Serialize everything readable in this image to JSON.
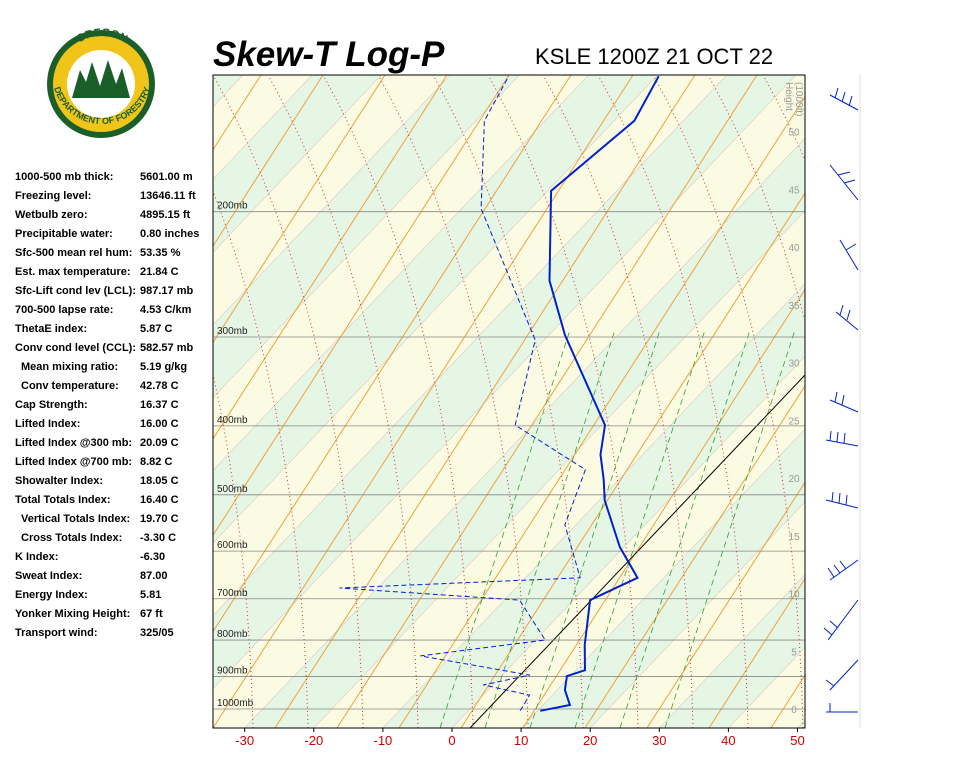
{
  "header": {
    "title": "Skew-T Log-P",
    "station": "KSLE 1200Z 21 OCT 22"
  },
  "logo": {
    "top": "OREGON",
    "bottom": "DEPARTMENT OF FORESTRY"
  },
  "indices": [
    {
      "label": "1000-500 mb thick:",
      "value": "5601.00 m"
    },
    {
      "label": "Freezing level:",
      "value": "13646.11 ft"
    },
    {
      "label": "Wetbulb zero:",
      "value": "4895.15 ft"
    },
    {
      "label": "Precipitable water:",
      "value": "0.80 inches"
    },
    {
      "label": "Sfc-500 mean rel hum:",
      "value": "53.35 %"
    },
    {
      "label": "Est. max temperature:",
      "value": "21.84 C"
    },
    {
      "label": "Sfc-Lift cond lev (LCL):",
      "value": "987.17 mb"
    },
    {
      "label": "700-500 lapse rate:",
      "value": "4.53 C/km"
    },
    {
      "label": "ThetaE index:",
      "value": "5.87 C"
    },
    {
      "label": "Conv cond level (CCL):",
      "value": "582.57 mb"
    },
    {
      "label": "Mean mixing ratio:",
      "value": "5.19 g/kg"
    },
    {
      "label": "Conv temperature:",
      "value": "42.78 C"
    },
    {
      "label": "Cap Strength:",
      "value": "16.37 C"
    },
    {
      "label": "Lifted Index:",
      "value": "16.00 C"
    },
    {
      "label": "Lifted Index @300 mb:",
      "value": "20.09 C"
    },
    {
      "label": "Lifted Index @700 mb:",
      "value": "8.82 C"
    },
    {
      "label": "Showalter Index:",
      "value": "18.05 C"
    },
    {
      "label": "Total Totals Index:",
      "value": "16.40 C"
    },
    {
      "label": "Vertical Totals Index:",
      "value": "19.70 C"
    },
    {
      "label": "Cross Totals Index:",
      "value": "-3.30 C"
    },
    {
      "label": "K Index:",
      "value": "-6.30"
    },
    {
      "label": "Sweat Index:",
      "value": "87.00"
    },
    {
      "label": "Energy Index:",
      "value": "5.81"
    },
    {
      "label": "Yonker Mixing Height:",
      "value": "67 ft"
    },
    {
      "label": "Transport wind:",
      "value": "325/05"
    }
  ],
  "diagram": {
    "temperature_ticks": [
      -30,
      -20,
      -10,
      0,
      10,
      20,
      30,
      40,
      50
    ],
    "pressure_ticks": [
      {
        "value": 200,
        "label": "200mb"
      },
      {
        "value": 300,
        "label": "300mb"
      },
      {
        "value": 400,
        "label": "400mb"
      },
      {
        "value": 500,
        "label": "500mb"
      },
      {
        "value": 600,
        "label": "600mb"
      },
      {
        "value": 700,
        "label": "700mb"
      },
      {
        "value": 800,
        "label": "800mb"
      },
      {
        "value": 900,
        "label": "900mb"
      },
      {
        "value": 1000,
        "label": "1000mb"
      }
    ],
    "height_label": [
      "Height",
      "(1000ft)"
    ],
    "height_ticks": [
      0,
      5,
      10,
      15,
      20,
      25,
      30,
      35,
      40,
      45,
      50
    ],
    "temperature": {
      "color": "#0022cc",
      "pressure": [
        1006,
        987,
        940,
        899,
        882,
        813,
        703,
        654,
        592,
        509,
        476,
        439,
        399,
        298,
        250,
        187,
        149,
        129
      ],
      "values": [
        10.4,
        13.9,
        11.1,
        9.5,
        11.3,
        7.8,
        2.4,
        6.2,
        -0.6,
        -9.2,
        -12.2,
        -16.1,
        -19.5,
        -37.7,
        -47.4,
        -59.5,
        -57.1,
        -59.7
      ]
    },
    "dewpoint": {
      "color": "#0022cc",
      "pressure": [
        1006,
        956,
        925,
        896,
        842,
        800,
        703,
        676,
        654,
        551,
        461,
        399,
        303,
        198,
        149,
        129
      ],
      "values": [
        7.5,
        6.7,
        -1.4,
        4.0,
        -14.5,
        1.4,
        -7.8,
        -35.5,
        -2.1,
        -11.6,
        -16.2,
        -32.5,
        -41.3,
        -67.2,
        -78.8,
        -81.4
      ]
    }
  }
}
